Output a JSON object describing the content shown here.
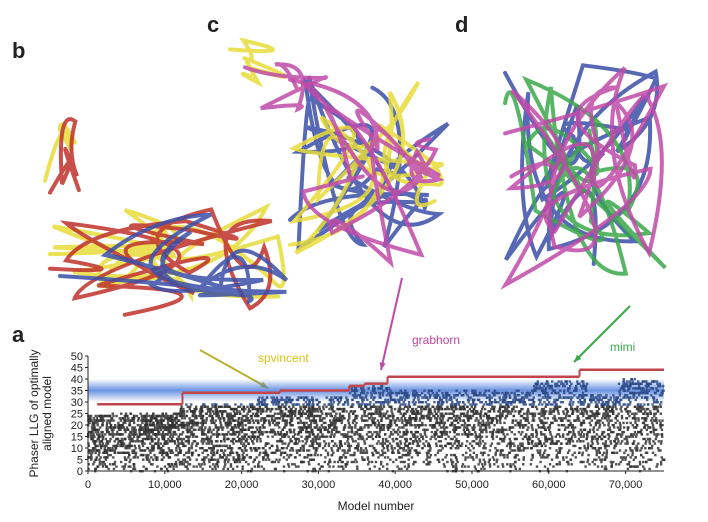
{
  "panels": {
    "a": "a",
    "b": "b",
    "c": "c",
    "d": "d"
  },
  "annotations": [
    {
      "text": "spvincent",
      "color": "#d4c21a"
    },
    {
      "text": "grabhorn",
      "color": "#c2449a"
    },
    {
      "text": "mimi",
      "color": "#3aaa4a"
    }
  ],
  "colors": {
    "points": "#333333",
    "best_line": "#c0464e",
    "band": "#3a6fd8",
    "yellow": "#e8dc3a",
    "red": "#c0302a",
    "blue": "#3a4fa8",
    "magenta": "#c04aa8",
    "green": "#3aa84a"
  },
  "chart_data": {
    "type": "scatter",
    "xlabel": "Model number",
    "ylabel": [
      "Phaser LLG of optimally",
      "aligned model"
    ],
    "xlim": [
      0,
      75000
    ],
    "ylim": [
      0,
      50
    ],
    "xticks": [
      "0",
      "10,000",
      "20,000",
      "30,000",
      "40,000",
      "50,000",
      "60,000",
      "70,000"
    ],
    "yticks": [
      "0",
      "5",
      "10",
      "15",
      "20",
      "25",
      "30",
      "35",
      "40",
      "45",
      "50"
    ],
    "highlight_band": [
      30,
      40
    ],
    "best_so_far": [
      {
        "x": [
          1200,
          12300
        ],
        "y": 29
      },
      {
        "x": [
          12300,
          25000
        ],
        "y": 34
      },
      {
        "x": [
          25000,
          34000
        ],
        "y": 35
      },
      {
        "x": [
          34000,
          36000
        ],
        "y": 37
      },
      {
        "x": [
          36000,
          39000
        ],
        "y": 38
      },
      {
        "x": [
          39000,
          64000
        ],
        "y": 41
      },
      {
        "x": [
          64000,
          75000
        ],
        "y": 44
      }
    ],
    "point_upper_envelope": [
      {
        "x": [
          0,
          12000
        ],
        "y": 25
      },
      {
        "x": [
          12000,
          22000
        ],
        "y": 29
      },
      {
        "x": [
          22000,
          34000
        ],
        "y": 32
      },
      {
        "x": [
          34000,
          40000
        ],
        "y": 37
      },
      {
        "x": [
          40000,
          58000
        ],
        "y": 35
      },
      {
        "x": [
          58000,
          65000
        ],
        "y": 39
      },
      {
        "x": [
          65000,
          69000
        ],
        "y": 33
      },
      {
        "x": [
          69000,
          75000
        ],
        "y": 40
      }
    ]
  }
}
